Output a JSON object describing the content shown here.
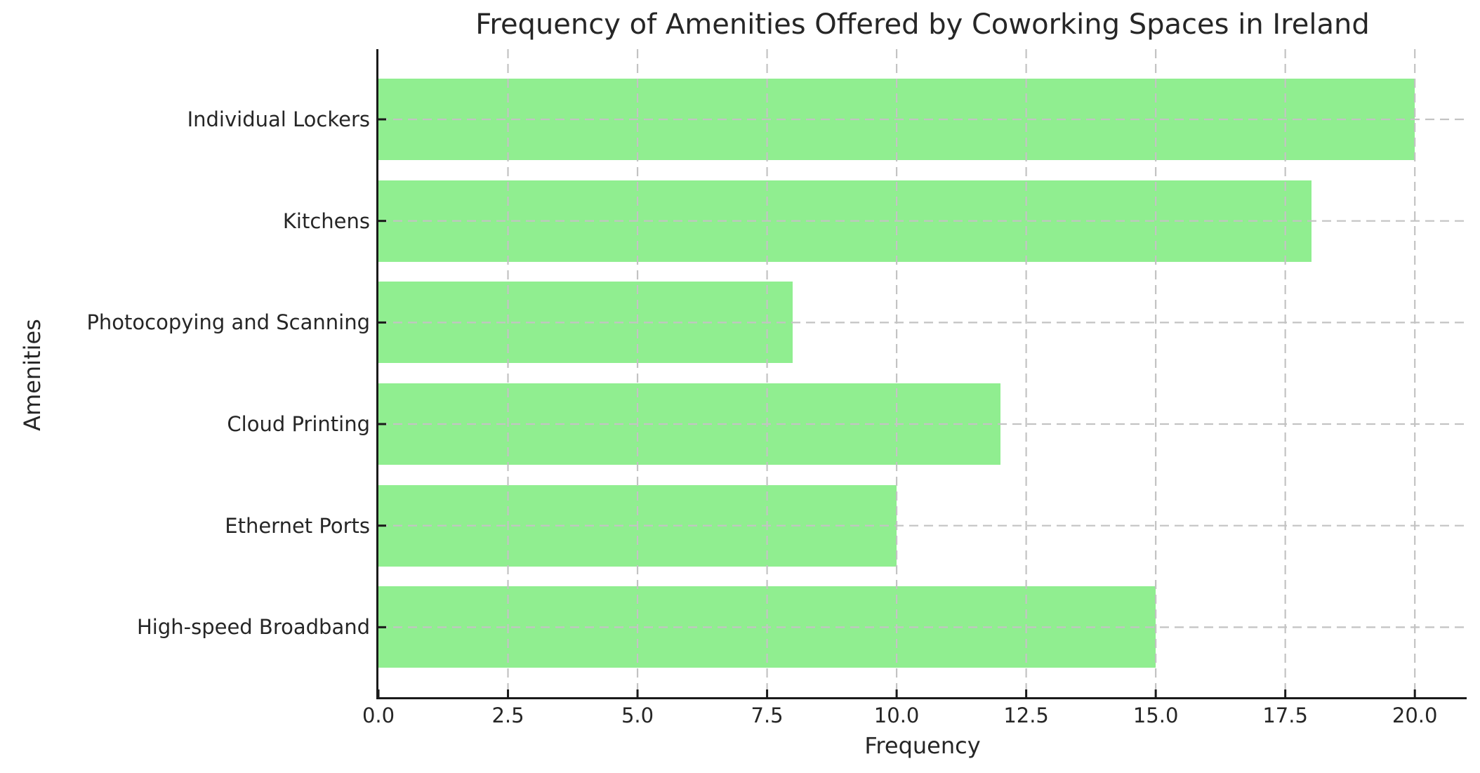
{
  "chart_data": {
    "type": "bar",
    "orientation": "horizontal",
    "title": "Frequency of Amenities Offered by Coworking Spaces in Ireland",
    "xlabel": "Frequency",
    "ylabel": "Amenities",
    "categories": [
      "Individual Lockers",
      "Kitchens",
      "Photocopying and Scanning",
      "Cloud Printing",
      "Ethernet Ports",
      "High-speed Broadband"
    ],
    "values": [
      20,
      18,
      8,
      12,
      10,
      15
    ],
    "xlim": [
      0,
      21
    ],
    "xtick_values": [
      0,
      2.5,
      5,
      7.5,
      10,
      12.5,
      15,
      17.5,
      20
    ],
    "xtick_labels": [
      "0.0",
      "2.5",
      "5.0",
      "7.5",
      "10.0",
      "12.5",
      "15.0",
      "17.5",
      "20.0"
    ],
    "grid": "dashed",
    "legend_position": "none",
    "bar_color": "#90EE90",
    "grid_color": "#C3C3C3",
    "spine_color": "#1A1A1A",
    "tick_color": "#1A1A1A",
    "text_color": "#262626",
    "background_color": "#FFFFFF"
  }
}
